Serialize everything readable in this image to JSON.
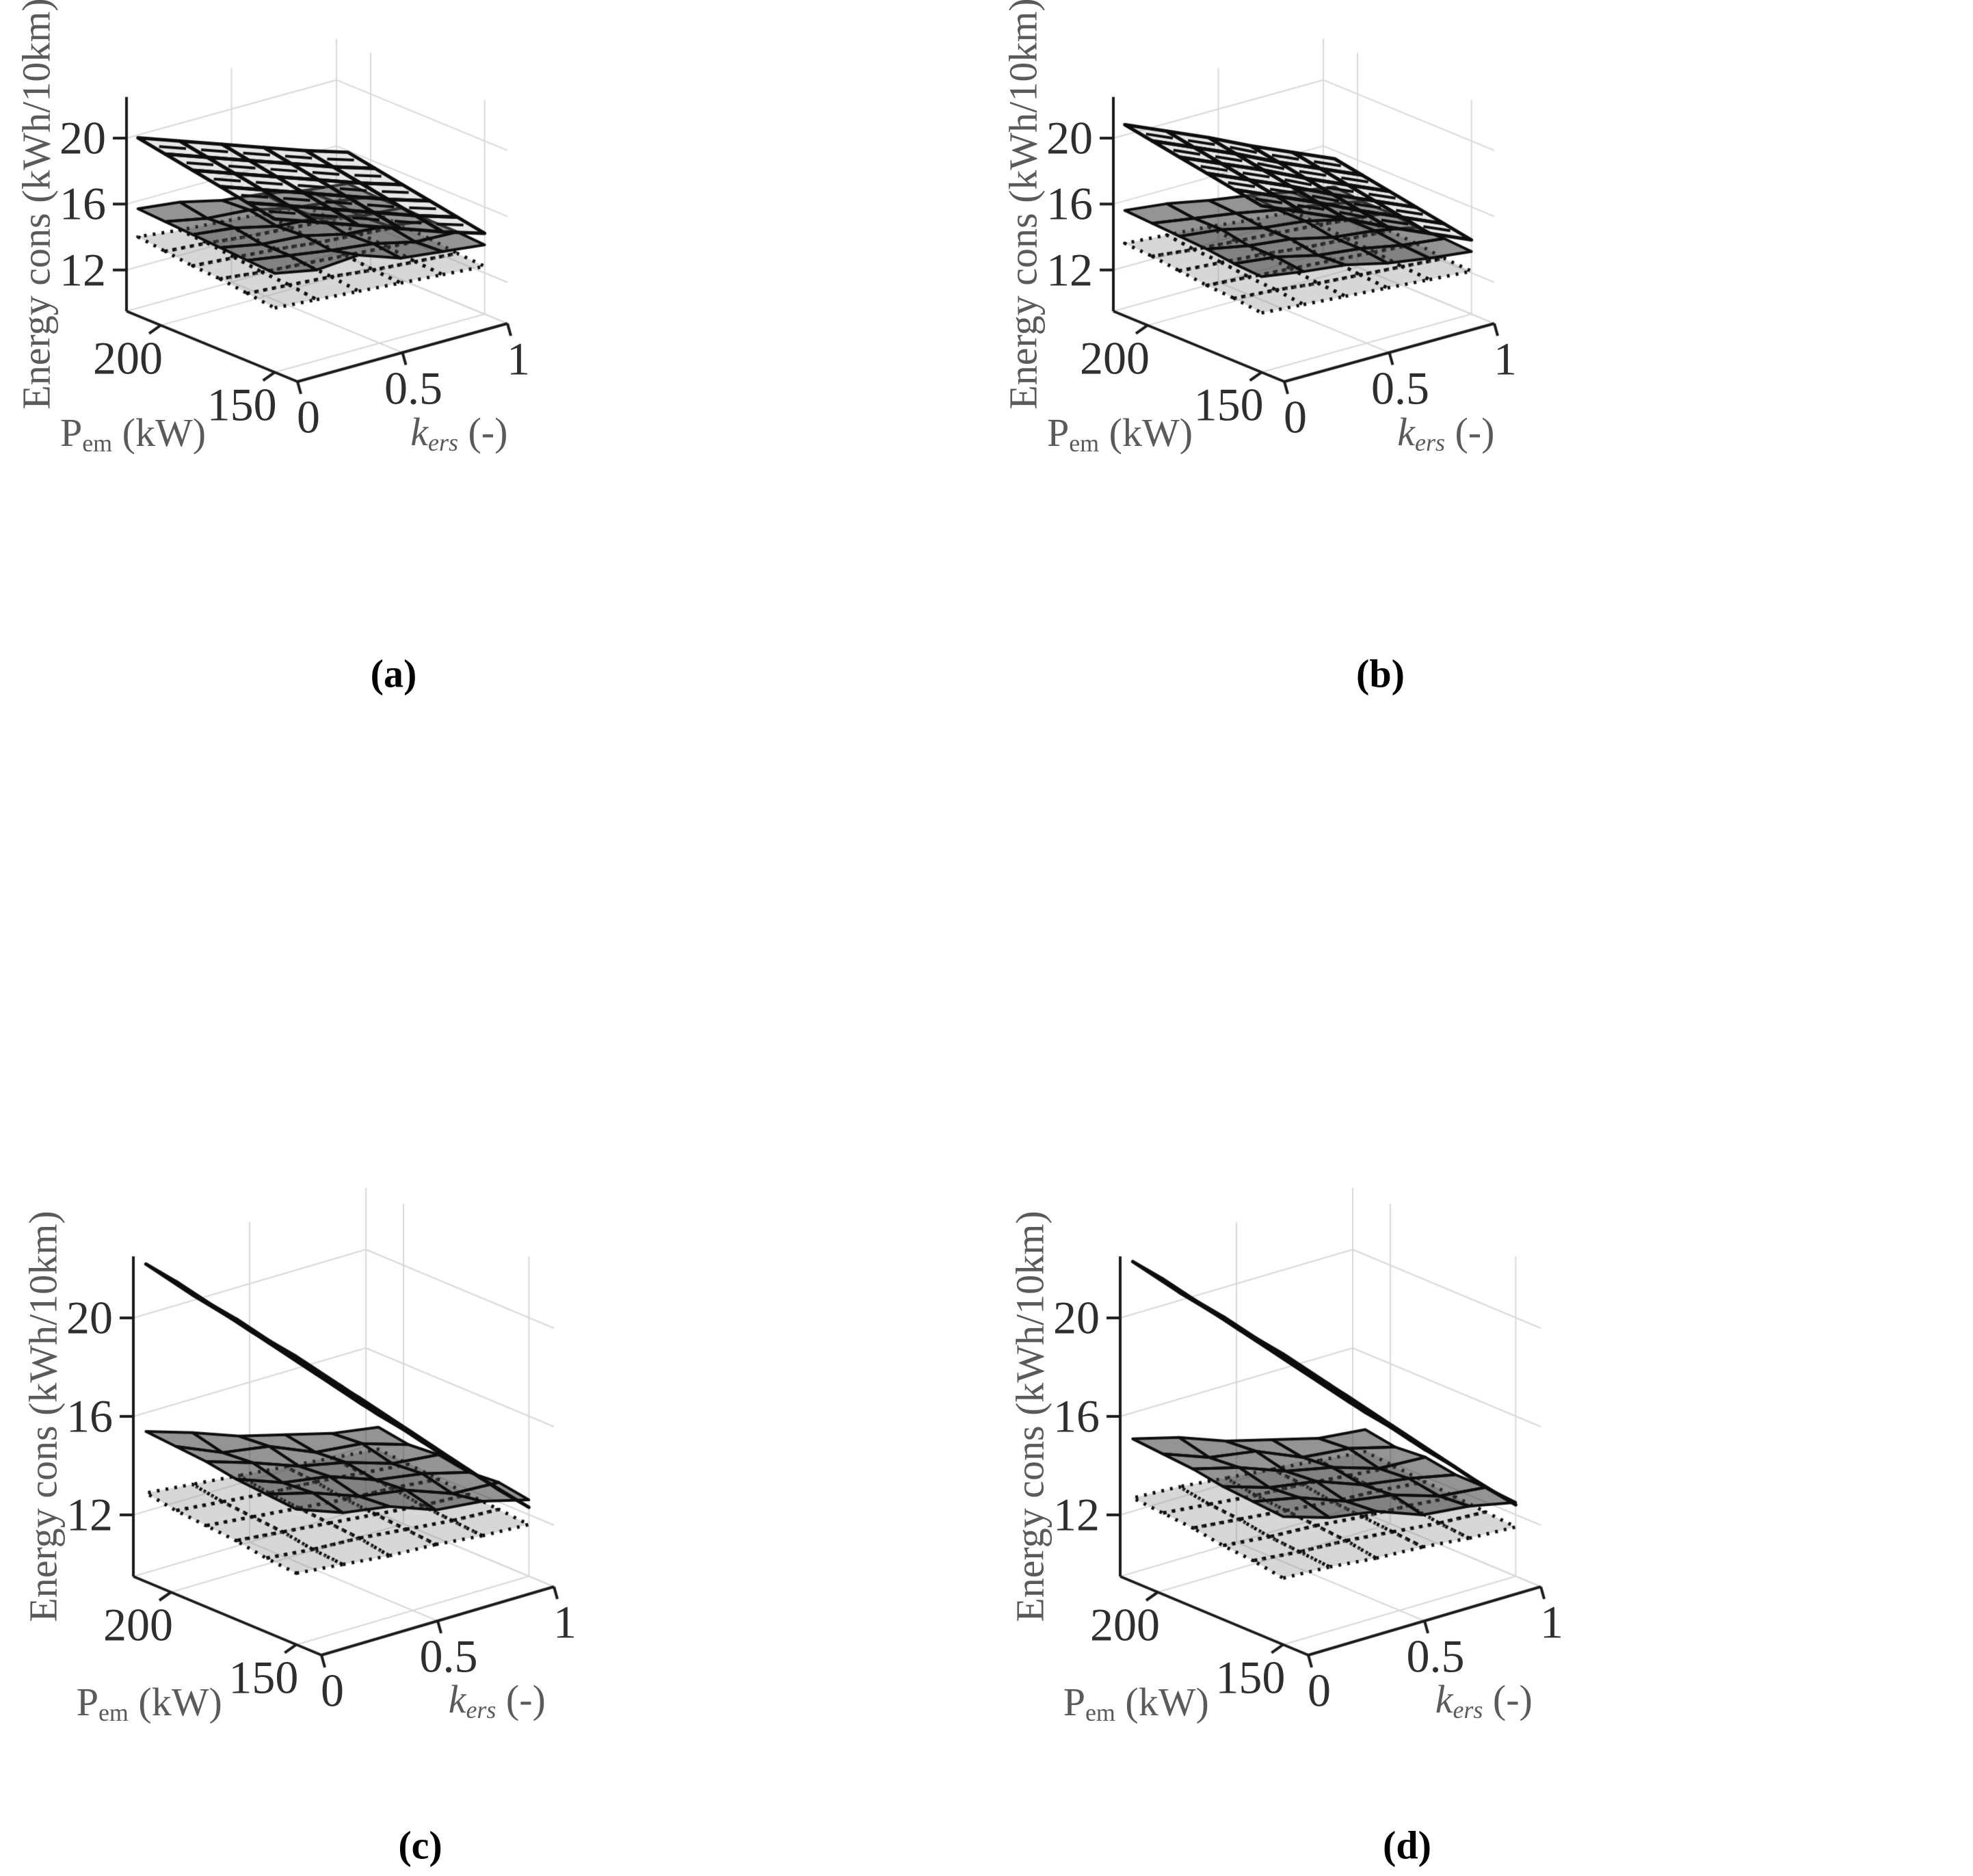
{
  "figure": {
    "background": "#ffffff",
    "captions": {
      "a": "(a)",
      "b": "(b)",
      "c": "(c)",
      "d": "(d)"
    }
  },
  "axes": {
    "z_label": "Energy cons (kWh/10km)",
    "x_label": {
      "main": "k",
      "sub": "ers",
      "rest": " (-)"
    },
    "y_label": {
      "main": "P",
      "sub": "em",
      "rest": " (kW)"
    },
    "x_ticks": [
      "0",
      "0.5",
      "1"
    ],
    "y_ticks": [
      "150",
      "200"
    ],
    "z_ticks": [
      "12",
      "16",
      "20"
    ]
  },
  "style": {
    "grid_color": "#d8d8d8",
    "axis_color": "#1a1a1a",
    "tick_color": "#2e2e2e",
    "label_color": "#5a5a5a"
  },
  "chart_data": [
    {
      "id": "a",
      "type": "surface",
      "caption": "(a)",
      "x_name": "k_ers (-)",
      "y_name": "P_em (kW)",
      "z_name": "Energy cons (kWh/10km)",
      "x": [
        0,
        0.2,
        0.4,
        0.6,
        0.8,
        1
      ],
      "y": [
        150,
        162,
        174,
        186,
        198,
        210
      ],
      "x_ticks": [
        0,
        0.5,
        1
      ],
      "y_ticks": [
        150,
        200
      ],
      "z_ticks": [
        12,
        16,
        20
      ],
      "x_range": [
        0,
        1
      ],
      "y_range": [
        140,
        215
      ],
      "z_range": [
        9.5,
        22.5
      ],
      "grid": true,
      "surfaces": [
        {
          "name": "upper-mesh-surface",
          "line_style": "solid",
          "stroke": "#0d0d0d",
          "fill": "rgba(165,165,165,0.25)",
          "lw": 5,
          "dash": [],
          "hatch": true,
          "z": [
            [
              18.8,
              17.9,
              17.0,
              16.1,
              15.2,
              14.4
            ],
            [
              19.1,
              18.2,
              17.3,
              16.4,
              15.5,
              14.7
            ],
            [
              19.4,
              18.5,
              17.6,
              16.7,
              15.8,
              15.0
            ],
            [
              19.7,
              18.8,
              17.9,
              17.0,
              16.1,
              15.3
            ],
            [
              20.0,
              19.1,
              18.2,
              17.3,
              16.4,
              15.6
            ],
            [
              20.3,
              19.4,
              18.5,
              17.6,
              16.7,
              15.9
            ]
          ]
        },
        {
          "name": "middle-dark-surface",
          "line_style": "solid",
          "stroke": "#0d0d0d",
          "fill": "rgba(60,60,60,0.55)",
          "lw": 4,
          "dash": [],
          "hatch": false,
          "z": [
            [
              15.5,
              15.0,
              15.2,
              14.3,
              14.0,
              13.7
            ],
            [
              15.6,
              15.2,
              14.8,
              14.5,
              13.9,
              13.8
            ],
            [
              15.7,
              15.2,
              15.0,
              14.4,
              14.2,
              13.8
            ],
            [
              15.8,
              15.5,
              14.9,
              14.7,
              14.1,
              13.9
            ],
            [
              15.9,
              15.4,
              15.2,
              14.6,
              14.3,
              13.9
            ],
            [
              16.0,
              15.7,
              15.1,
              14.8,
              14.3,
              14.0
            ]
          ]
        },
        {
          "name": "lower-dotted-surface",
          "line_style": "dotted",
          "stroke": "#0d0d0d",
          "fill": "rgba(150,150,150,0.38)",
          "lw": 5,
          "dash": [
            4,
            9
          ],
          "hatch": false,
          "z": [
            [
              13.4,
              13.2,
              13.0,
              12.8,
              12.6,
              12.4
            ],
            [
              13.6,
              13.4,
              13.2,
              12.9,
              12.7,
              12.5
            ],
            [
              13.8,
              13.5,
              13.3,
              13.1,
              12.9,
              12.7
            ],
            [
              13.9,
              13.7,
              13.5,
              13.2,
              13.0,
              12.8
            ],
            [
              14.1,
              13.9,
              13.6,
              13.4,
              13.2,
              12.9
            ],
            [
              14.3,
              14.0,
              13.8,
              13.6,
              13.3,
              13.1
            ]
          ]
        }
      ]
    },
    {
      "id": "b",
      "type": "surface",
      "caption": "(b)",
      "x_name": "k_ers (-)",
      "y_name": "P_em (kW)",
      "z_name": "Energy cons (kWh/10km)",
      "x": [
        0,
        0.2,
        0.4,
        0.6,
        0.8,
        1
      ],
      "y": [
        150,
        162,
        174,
        186,
        198,
        210
      ],
      "x_ticks": [
        0,
        0.5,
        1
      ],
      "y_ticks": [
        150,
        200
      ],
      "z_ticks": [
        12,
        16,
        20
      ],
      "x_range": [
        0,
        1
      ],
      "y_range": [
        140,
        215
      ],
      "z_range": [
        9.5,
        22.5
      ],
      "grid": true,
      "surfaces": [
        {
          "name": "upper-mesh-surface",
          "line_style": "solid",
          "stroke": "#0d0d0d",
          "fill": "rgba(165,165,165,0.25)",
          "lw": 5,
          "dash": [],
          "hatch": true,
          "z": [
            [
              19.6,
              18.5,
              17.4,
              16.2,
              15.1,
              14.0
            ],
            [
              19.9,
              18.8,
              17.7,
              16.5,
              15.4,
              14.3
            ],
            [
              20.2,
              19.1,
              18.0,
              16.8,
              15.7,
              14.6
            ],
            [
              20.5,
              19.4,
              18.3,
              17.1,
              16.0,
              14.9
            ],
            [
              20.8,
              19.7,
              18.6,
              17.4,
              16.3,
              15.2
            ],
            [
              21.1,
              20.0,
              18.9,
              17.7,
              16.6,
              15.5
            ]
          ]
        },
        {
          "name": "middle-dark-surface",
          "line_style": "solid",
          "stroke": "#0d0d0d",
          "fill": "rgba(60,60,60,0.55)",
          "lw": 4,
          "dash": [],
          "hatch": false,
          "z": [
            [
              15.3,
              14.9,
              14.6,
              14.0,
              13.6,
              13.3
            ],
            [
              15.4,
              15.1,
              14.5,
              14.2,
              13.7,
              13.4
            ],
            [
              15.6,
              15.1,
              14.8,
              14.2,
              13.9,
              13.4
            ],
            [
              15.7,
              15.4,
              14.8,
              14.5,
              13.9,
              13.6
            ],
            [
              15.8,
              15.4,
              15.0,
              14.5,
              14.1,
              13.6
            ],
            [
              15.9,
              15.6,
              15.1,
              14.7,
              14.2,
              13.8
            ]
          ]
        },
        {
          "name": "lower-dotted-surface",
          "line_style": "dotted",
          "stroke": "#0d0d0d",
          "fill": "rgba(150,150,150,0.38)",
          "lw": 5,
          "dash": [
            4,
            9
          ],
          "hatch": false,
          "z": [
            [
              13.1,
              12.9,
              12.7,
              12.5,
              12.3,
              12.1
            ],
            [
              13.3,
              13.1,
              12.8,
              12.6,
              12.4,
              12.2
            ],
            [
              13.4,
              13.2,
              13.0,
              12.8,
              12.6,
              12.4
            ],
            [
              13.6,
              13.4,
              13.2,
              12.9,
              12.7,
              12.5
            ],
            [
              13.8,
              13.5,
              13.3,
              13.1,
              12.9,
              12.6
            ],
            [
              13.9,
              13.7,
              13.5,
              13.2,
              13.0,
              12.8
            ]
          ]
        }
      ]
    },
    {
      "id": "c",
      "type": "surface",
      "caption": "(c)",
      "x_name": "k_ers (-)",
      "y_name": "P_em (kW)",
      "z_name": "Energy cons (kWh/10km)",
      "x": [
        0,
        0.2,
        0.4,
        0.6,
        0.8,
        1
      ],
      "y": [
        150,
        162,
        174,
        186,
        198,
        210
      ],
      "x_ticks": [
        0,
        0.5,
        1
      ],
      "y_ticks": [
        150,
        200
      ],
      "z_ticks": [
        12,
        16,
        20
      ],
      "x_range": [
        0,
        1
      ],
      "y_range": [
        140,
        215
      ],
      "z_range": [
        9.5,
        22.5
      ],
      "grid": true,
      "surfaces": [
        {
          "name": "upper-mesh-surface",
          "line_style": "solid",
          "stroke": "#0d0d0d",
          "fill": "rgba(165,165,165,0.25)",
          "lw": 5,
          "dash": [],
          "hatch": true,
          "z": [
            [
              21.2,
              19.4,
              17.6,
              15.8,
              14.0,
              12.3
            ],
            [
              21.4,
              19.6,
              17.9,
              16.1,
              14.3,
              12.5
            ],
            [
              21.7,
              19.9,
              18.1,
              16.3,
              14.5,
              12.8
            ],
            [
              21.9,
              20.1,
              18.4,
              16.6,
              14.8,
              13.0
            ],
            [
              22.2,
              20.4,
              18.6,
              16.8,
              15.0,
              13.3
            ],
            [
              22.4,
              20.6,
              18.9,
              17.1,
              15.3,
              13.5
            ]
          ]
        },
        {
          "name": "middle-dark-surface",
          "line_style": "solid",
          "stroke": "#0d0d0d",
          "fill": "rgba(60,60,60,0.55)",
          "lw": 4,
          "dash": [],
          "hatch": false,
          "z": [
            [
              15.0,
              14.3,
              14.0,
              13.3,
              13.1,
              12.6
            ],
            [
              15.1,
              14.6,
              13.9,
              13.6,
              12.9,
              12.8
            ],
            [
              15.2,
              14.5,
              14.2,
              13.5,
              13.2,
              12.7
            ],
            [
              15.4,
              14.8,
              14.1,
              13.7,
              13.1,
              12.9
            ],
            [
              15.5,
              14.7,
              14.4,
              13.6,
              13.4,
              12.8
            ],
            [
              15.6,
              15.0,
              14.3,
              13.8,
              13.3,
              13.0
            ]
          ]
        },
        {
          "name": "lower-dotted-surface",
          "line_style": "dotted",
          "stroke": "#0d0d0d",
          "fill": "rgba(150,150,150,0.38)",
          "lw": 5,
          "dash": [
            4,
            9
          ],
          "hatch": false,
          "z": [
            [
              12.4,
              12.2,
              12.0,
              11.9,
              11.7,
              11.6
            ],
            [
              12.5,
              12.3,
              12.2,
              12.0,
              11.8,
              11.7
            ],
            [
              12.7,
              12.5,
              12.3,
              12.1,
              11.9,
              11.8
            ],
            [
              12.8,
              12.6,
              12.4,
              12.2,
              12.1,
              11.9
            ],
            [
              12.9,
              12.7,
              12.5,
              12.4,
              12.2,
              12.0
            ],
            [
              13.1,
              12.9,
              12.7,
              12.5,
              12.3,
              12.1
            ]
          ]
        }
      ]
    },
    {
      "id": "d",
      "type": "surface",
      "caption": "(d)",
      "x_name": "k_ers (-)",
      "y_name": "P_em (kW)",
      "z_name": "Energy cons (kWh/10km)",
      "x": [
        0,
        0.2,
        0.4,
        0.6,
        0.8,
        1
      ],
      "y": [
        150,
        162,
        174,
        186,
        198,
        210
      ],
      "x_ticks": [
        0,
        0.5,
        1
      ],
      "y_ticks": [
        150,
        200
      ],
      "z_ticks": [
        12,
        16,
        20
      ],
      "x_range": [
        0,
        1
      ],
      "y_range": [
        140,
        215
      ],
      "z_range": [
        9.5,
        22.5
      ],
      "grid": true,
      "surfaces": [
        {
          "name": "upper-mesh-surface",
          "line_style": "solid",
          "stroke": "#0d0d0d",
          "fill": "rgba(165,165,165,0.25)",
          "lw": 5,
          "dash": [],
          "hatch": true,
          "z": [
            [
              21.3,
              19.5,
              17.7,
              15.9,
              14.1,
              12.4
            ],
            [
              21.5,
              19.7,
              18.0,
              16.2,
              14.4,
              12.6
            ],
            [
              21.8,
              20.0,
              18.2,
              16.4,
              14.6,
              12.9
            ],
            [
              22.0,
              20.2,
              18.5,
              16.7,
              14.9,
              13.1
            ],
            [
              22.3,
              20.5,
              18.7,
              16.9,
              15.1,
              13.4
            ],
            [
              22.5,
              20.7,
              19.0,
              17.2,
              15.4,
              13.6
            ]
          ]
        },
        {
          "name": "middle-dark-surface",
          "line_style": "solid",
          "stroke": "#0d0d0d",
          "fill": "rgba(60,60,60,0.55)",
          "lw": 4,
          "dash": [],
          "hatch": false,
          "z": [
            [
              14.7,
              14.1,
              13.8,
              13.1,
              12.9,
              12.5
            ],
            [
              14.8,
              14.4,
              13.7,
              13.4,
              12.8,
              12.6
            ],
            [
              14.9,
              14.3,
              14.0,
              13.3,
              13.0,
              12.6
            ],
            [
              15.1,
              14.6,
              13.9,
              13.5,
              12.9,
              12.8
            ],
            [
              15.2,
              14.5,
              14.2,
              13.4,
              13.2,
              12.7
            ],
            [
              15.3,
              14.8,
              14.1,
              13.6,
              13.1,
              12.9
            ]
          ]
        },
        {
          "name": "lower-dotted-surface",
          "line_style": "dotted",
          "stroke": "#0d0d0d",
          "fill": "rgba(150,150,150,0.38)",
          "lw": 5,
          "dash": [
            4,
            9
          ],
          "hatch": false,
          "z": [
            [
              12.2,
              12.1,
              11.9,
              11.8,
              11.6,
              11.5
            ],
            [
              12.4,
              12.2,
              12.1,
              11.9,
              11.7,
              11.6
            ],
            [
              12.5,
              12.3,
              12.2,
              12.0,
              11.9,
              11.7
            ],
            [
              12.7,
              12.5,
              12.3,
              12.1,
              12.0,
              11.8
            ],
            [
              12.8,
              12.6,
              12.4,
              12.3,
              12.1,
              11.9
            ],
            [
              12.9,
              12.8,
              12.6,
              12.4,
              12.2,
              12.0
            ]
          ]
        }
      ]
    }
  ]
}
